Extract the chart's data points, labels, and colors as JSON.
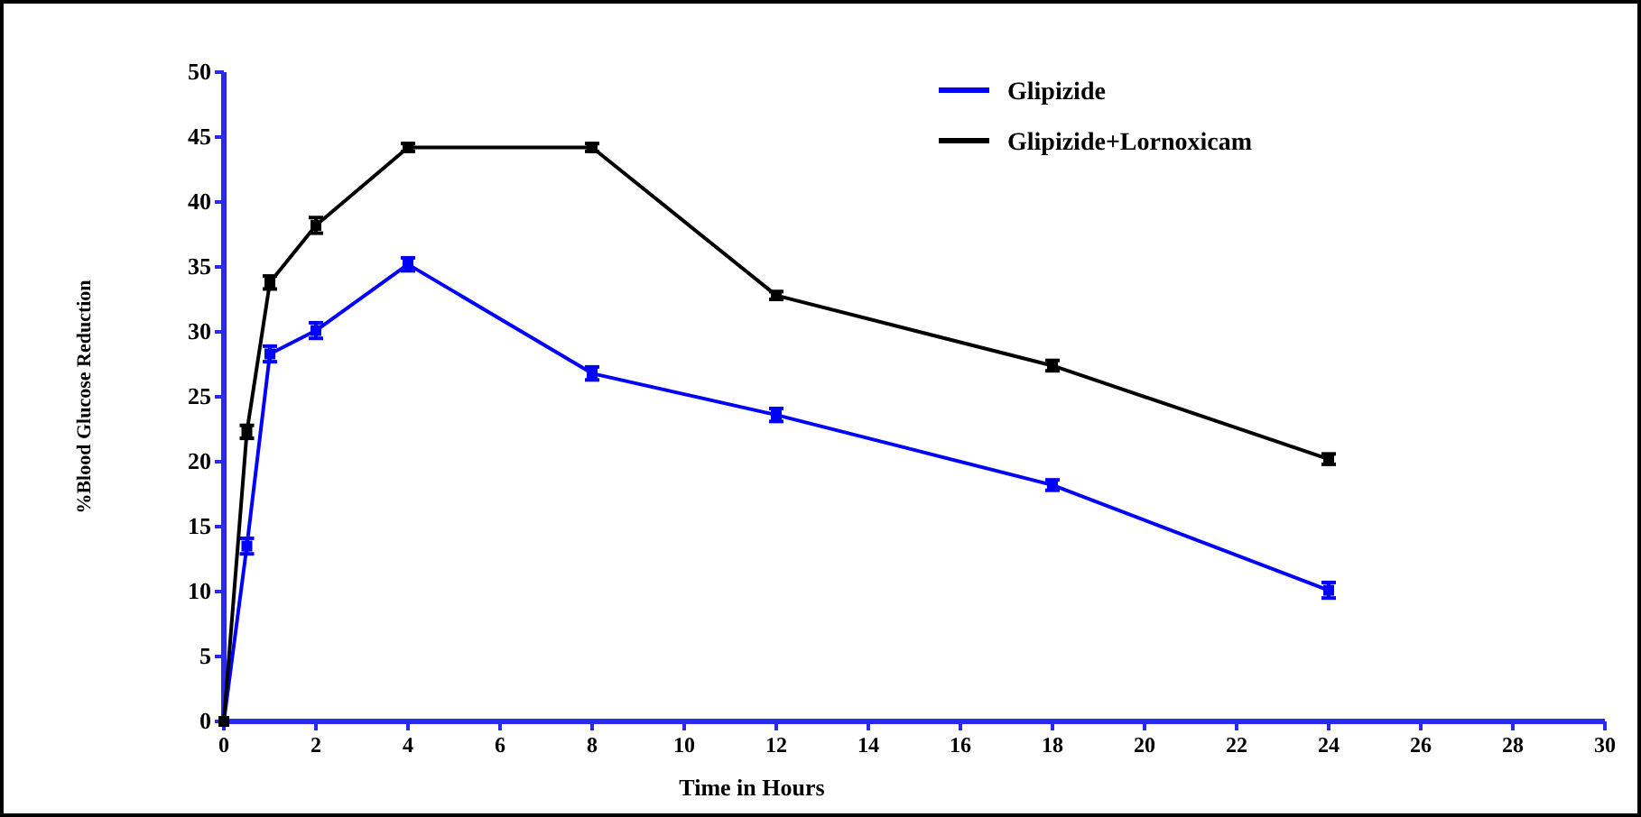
{
  "chart_data": {
    "type": "line",
    "xlabel": "Time in Hours",
    "ylabel": "%Blood Glucose Reduction",
    "x": [
      0,
      0.5,
      1,
      2,
      4,
      8,
      12,
      18,
      24
    ],
    "series": [
      {
        "name": "Glipizide",
        "color": "#0000ff",
        "values": [
          0,
          13.5,
          28.3,
          30.1,
          35.2,
          26.8,
          23.6,
          18.2,
          10.1
        ],
        "errors": [
          null,
          0.6,
          0.6,
          0.6,
          0.5,
          0.5,
          0.5,
          0.4,
          0.6
        ]
      },
      {
        "name": "Glipizide+Lornoxicam",
        "color": "#000000",
        "values": [
          0,
          22.3,
          33.8,
          38.2,
          44.2,
          44.2,
          32.8,
          27.4,
          20.2
        ],
        "errors": [
          null,
          0.5,
          0.5,
          0.6,
          0.3,
          0.3,
          0.3,
          0.4,
          0.4
        ]
      }
    ],
    "xlim": [
      0,
      30
    ],
    "xticks": [
      0,
      2,
      4,
      6,
      8,
      10,
      12,
      14,
      16,
      18,
      20,
      22,
      24,
      26,
      28,
      30
    ],
    "ylim": [
      0,
      50
    ],
    "yticks": [
      0,
      5,
      10,
      15,
      20,
      25,
      30,
      35,
      40,
      45,
      50
    ],
    "grid": false,
    "legend": "top right",
    "marker": "square",
    "line_style": "solid"
  }
}
